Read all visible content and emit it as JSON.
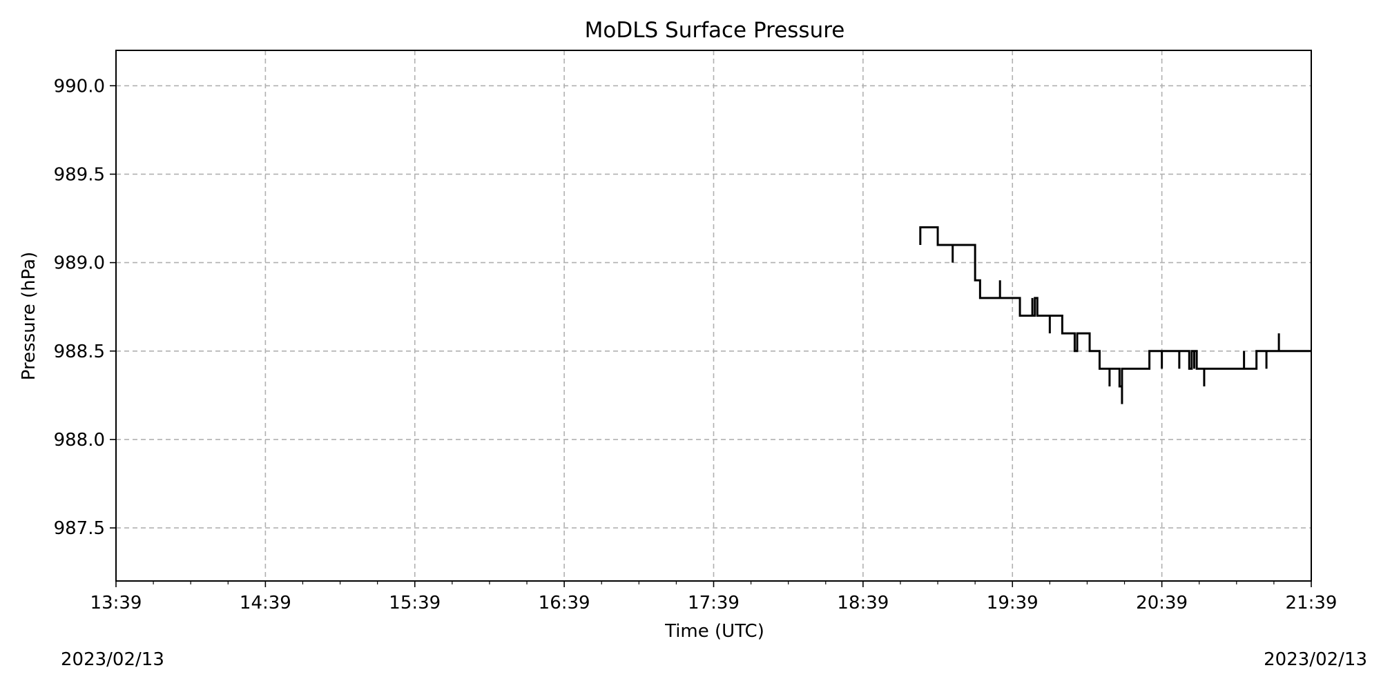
{
  "chart_data": {
    "type": "line",
    "title": "MoDLS Surface Pressure",
    "xlabel": "Time (UTC)",
    "ylabel": "Pressure (hPa)",
    "xlim": [
      "2023-02-13 13:39",
      "2023-02-13 21:39"
    ],
    "ylim": [
      987.2,
      990.2
    ],
    "x_ticks": [
      "13:39",
      "14:39",
      "15:39",
      "16:39",
      "17:39",
      "18:39",
      "19:39",
      "20:39",
      "21:39"
    ],
    "y_ticks": [
      "987.5",
      "988.0",
      "988.5",
      "989.0",
      "989.5",
      "990.0"
    ],
    "grid": true,
    "grid_style": "dashed",
    "line_color": "#000000",
    "date_left": "2023/02/13",
    "date_right": "2023/02/13",
    "series": [
      {
        "step": true,
        "points": [
          [
            "19:02",
            989.2
          ],
          [
            "19:02",
            989.1
          ],
          [
            "19:02",
            989.2
          ],
          [
            "19:09",
            989.2
          ],
          [
            "19:09",
            989.1
          ],
          [
            "19:15",
            989.1
          ],
          [
            "19:15",
            989.0
          ],
          [
            "19:15",
            989.1
          ],
          [
            "19:24",
            989.1
          ],
          [
            "19:24",
            989.0
          ],
          [
            "19:24",
            988.9
          ],
          [
            "19:25",
            988.9
          ],
          [
            "19:25",
            988.9
          ],
          [
            "19:26",
            988.8
          ],
          [
            "19:34",
            988.8
          ],
          [
            "19:34",
            988.9
          ],
          [
            "19:34",
            988.8
          ],
          [
            "19:42",
            988.8
          ],
          [
            "19:42",
            988.7
          ],
          [
            "19:47",
            988.7
          ],
          [
            "19:47",
            988.8
          ],
          [
            "19:47",
            988.7
          ],
          [
            "19:48",
            988.8
          ],
          [
            "19:49",
            988.8
          ],
          [
            "19:49",
            988.7
          ],
          [
            "19:54",
            988.7
          ],
          [
            "19:54",
            988.6
          ],
          [
            "19:54",
            988.7
          ],
          [
            "19:59",
            988.7
          ],
          [
            "19:59",
            988.6
          ],
          [
            "20:04",
            988.6
          ],
          [
            "20:04",
            988.5
          ],
          [
            "20:05",
            988.5
          ],
          [
            "20:05",
            988.6
          ],
          [
            "20:10",
            988.6
          ],
          [
            "20:10",
            988.5
          ],
          [
            "20:14",
            988.5
          ],
          [
            "20:14",
            988.4
          ],
          [
            "20:18",
            988.4
          ],
          [
            "20:18",
            988.3
          ],
          [
            "20:18",
            988.4
          ],
          [
            "20:22",
            988.4
          ],
          [
            "20:22",
            988.3
          ],
          [
            "20:23",
            988.4
          ],
          [
            "20:23",
            988.2
          ],
          [
            "20:23",
            988.4
          ],
          [
            "20:34",
            988.4
          ],
          [
            "20:34",
            988.5
          ],
          [
            "20:39",
            988.5
          ],
          [
            "20:39",
            988.4
          ],
          [
            "20:39",
            988.5
          ],
          [
            "20:46",
            988.5
          ],
          [
            "20:46",
            988.4
          ],
          [
            "20:46",
            988.5
          ],
          [
            "20:50",
            988.5
          ],
          [
            "20:50",
            988.4
          ],
          [
            "20:51",
            988.5
          ],
          [
            "20:52",
            988.4
          ],
          [
            "20:52",
            988.5
          ],
          [
            "20:53",
            988.5
          ],
          [
            "20:53",
            988.4
          ],
          [
            "20:56",
            988.4
          ],
          [
            "20:56",
            988.3
          ],
          [
            "20:56",
            988.4
          ],
          [
            "21:12",
            988.4
          ],
          [
            "21:12",
            988.5
          ],
          [
            "21:12",
            988.4
          ],
          [
            "21:17",
            988.4
          ],
          [
            "21:17",
            988.5
          ],
          [
            "21:21",
            988.5
          ],
          [
            "21:21",
            988.4
          ],
          [
            "21:21",
            988.5
          ],
          [
            "21:26",
            988.5
          ],
          [
            "21:26",
            988.6
          ],
          [
            "21:26",
            988.5
          ],
          [
            "21:39",
            988.5
          ]
        ]
      }
    ]
  }
}
